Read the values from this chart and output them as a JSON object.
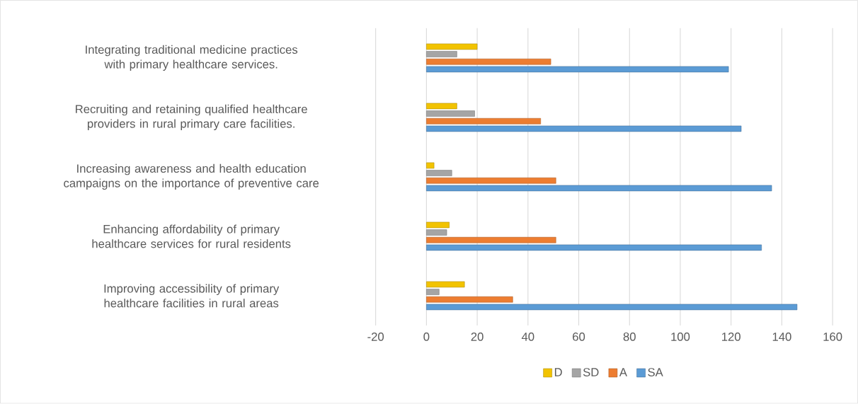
{
  "chart_data": {
    "type": "bar",
    "orientation": "horizontal",
    "categories": [
      "Integrating traditional medicine practices with primary healthcare services.",
      "Recruiting and retaining qualified healthcare providers in rural primary care facilities.",
      "Increasing awareness and health education campaigns on the importance of preventive care",
      "Enhancing affordability of primary healthcare services for rural residents",
      "Improving accessibility of primary healthcare facilities in rural areas"
    ],
    "series": [
      {
        "name": "D",
        "color": "#f2c300",
        "values": [
          20,
          12,
          3,
          9,
          15
        ]
      },
      {
        "name": "SD",
        "color": "#a5a5a5",
        "values": [
          12,
          19,
          10,
          8,
          5
        ]
      },
      {
        "name": "A",
        "color": "#ed7d31",
        "values": [
          49,
          45,
          51,
          51,
          34
        ]
      },
      {
        "name": "SA",
        "color": "#5b9bd5",
        "values": [
          119,
          124,
          136,
          132,
          146
        ]
      }
    ],
    "xlim": [
      -20,
      160
    ],
    "xticks": [
      -20,
      0,
      20,
      40,
      60,
      80,
      100,
      120,
      140,
      160
    ],
    "grid": "x",
    "legend": "bottom"
  }
}
